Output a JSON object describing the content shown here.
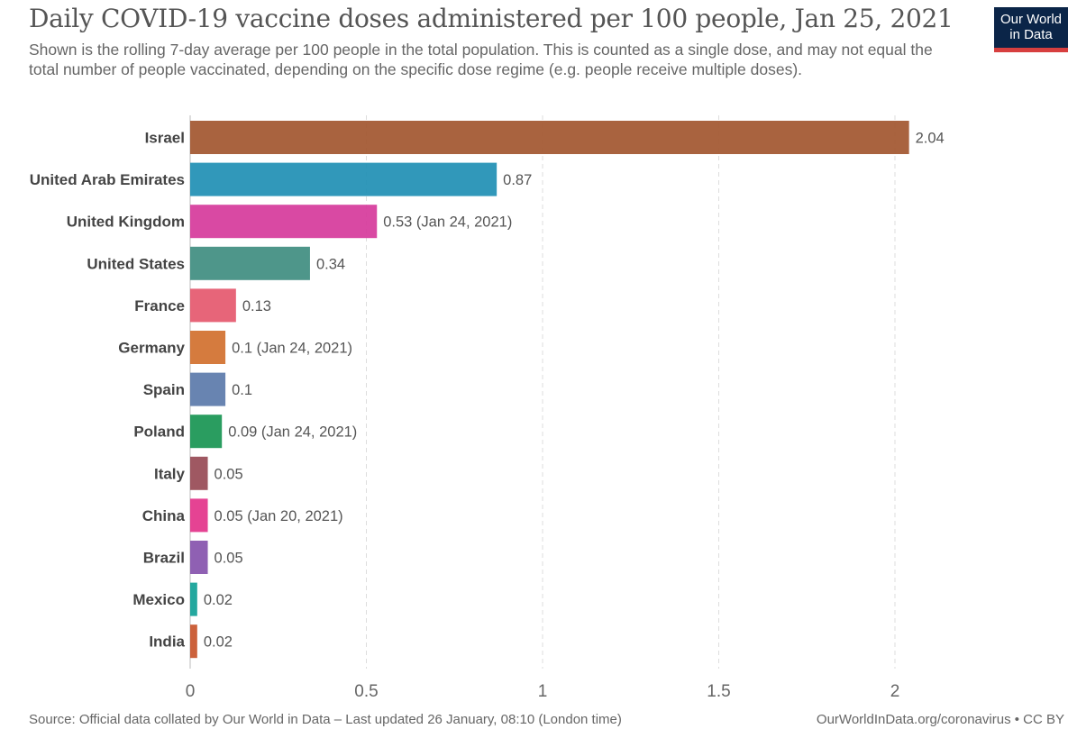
{
  "header": {
    "title": "Daily COVID-19 vaccine doses administered per 100 people, Jan 25, 2021",
    "subtitle": "Shown is the rolling 7-day average per 100 people in the total population. This is counted as a single dose, and may not equal the total number of people vaccinated, depending on the specific dose regime (e.g. people receive multiple doses).",
    "logo_line1": "Our World",
    "logo_line2": "in Data"
  },
  "footer": {
    "source": "Source: Official data collated by Our World in Data – Last updated 26 January, 08:10 (London time)",
    "link": "OurWorldInData.org/coronavirus • CC BY"
  },
  "chart_data": {
    "type": "bar",
    "orientation": "horizontal",
    "title": "Daily COVID-19 vaccine doses administered per 100 people, Jan 25, 2021",
    "xlim": [
      0,
      2.04
    ],
    "xticks": [
      0,
      0.5,
      1,
      1.5,
      2
    ],
    "xtick_labels": [
      "0",
      "0.5",
      "1",
      "1.5",
      "2"
    ],
    "grid": "vertical dashed",
    "categories": [
      "Israel",
      "United Arab Emirates",
      "United Kingdom",
      "United States",
      "France",
      "Germany",
      "Spain",
      "Poland",
      "Italy",
      "China",
      "Brazil",
      "Mexico",
      "India"
    ],
    "values": [
      2.04,
      0.87,
      0.53,
      0.34,
      0.13,
      0.1,
      0.1,
      0.09,
      0.05,
      0.05,
      0.05,
      0.02,
      0.02
    ],
    "value_labels": [
      "2.04",
      "0.87",
      "0.53 (Jan 24, 2021)",
      "0.34",
      "0.13",
      "0.1 (Jan 24, 2021)",
      "0.1",
      "0.09 (Jan 24, 2021)",
      "0.05",
      "0.05 (Jan 20, 2021)",
      "0.05",
      "0.02",
      "0.02"
    ],
    "colors": [
      "#a2562f",
      "#1f8fb4",
      "#d63a9b",
      "#3f8d80",
      "#e5586e",
      "#d1702e",
      "#5b79aa",
      "#189553",
      "#974a55",
      "#e3338a",
      "#8552ac",
      "#11a197",
      "#c8542a"
    ]
  }
}
